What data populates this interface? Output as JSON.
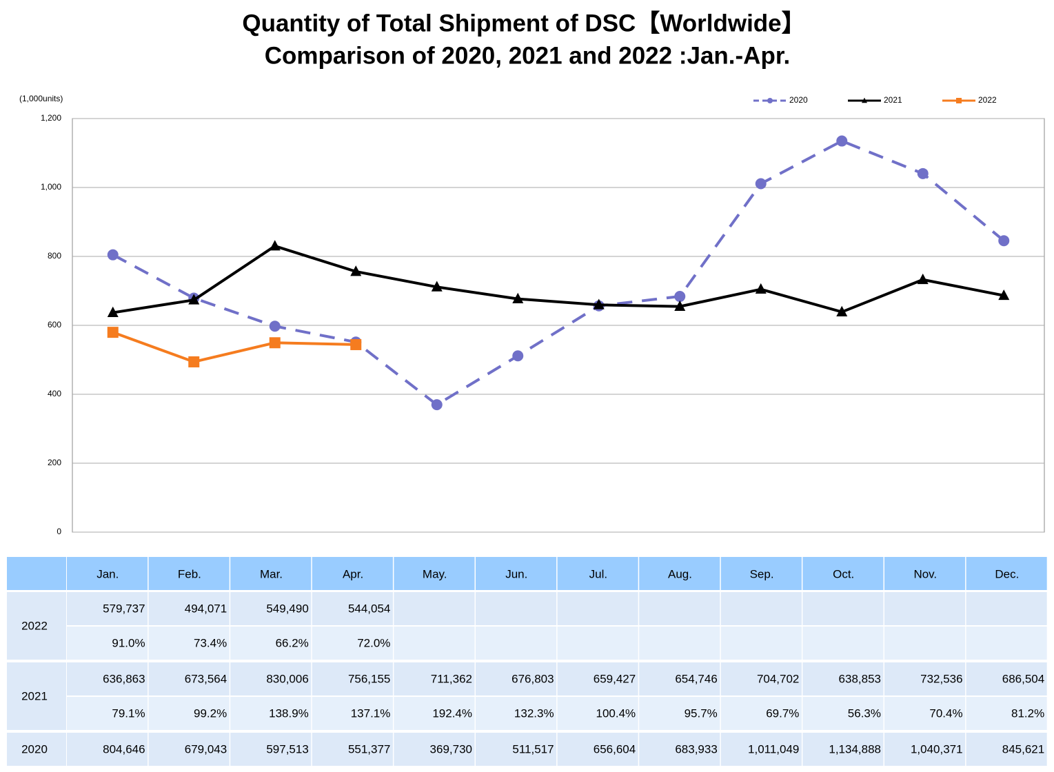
{
  "chart_data": {
    "type": "line",
    "title": "Quantity of Total Shipment of DSC【Worldwide】",
    "subtitle": "Comparison of 2020, 2021 and 2022 :Jan.-Apr.",
    "y_label": "(1,000units)",
    "categories": [
      "Jan.",
      "Feb.",
      "Mar.",
      "Apr.",
      "May.",
      "Jun.",
      "Jul.",
      "Aug.",
      "Sep.",
      "Oct.",
      "Nov.",
      "Dec."
    ],
    "series": [
      {
        "name": "2020",
        "color": "#7070c8",
        "dashed": true,
        "marker": "circle",
        "values": [
          804.646,
          679.043,
          597.513,
          551.377,
          369.73,
          511.517,
          656.604,
          683.933,
          1011.049,
          1134.888,
          1040.371,
          845.621
        ]
      },
      {
        "name": "2021",
        "color": "#000000",
        "marker": "triangle",
        "values": [
          636.863,
          673.564,
          830.006,
          756.155,
          711.362,
          676.803,
          659.427,
          654.746,
          704.702,
          638.853,
          732.536,
          686.504
        ]
      },
      {
        "name": "2022",
        "color": "#f57c1f",
        "marker": "square",
        "values": [
          579.737,
          494.071,
          549.49,
          544.054,
          null,
          null,
          null,
          null,
          null,
          null,
          null,
          null
        ]
      }
    ],
    "ylim": [
      0,
      1200
    ],
    "yticks": [
      0,
      200,
      400,
      600,
      800,
      {
        "value": 1000,
        "label": "1,000"
      },
      {
        "value": 1200,
        "label": "1,200"
      }
    ],
    "grid": true,
    "legend": "top-right"
  },
  "table": [
    {
      "rows": [
        [
          "579,737",
          "494,071",
          "549,490",
          "544,054"
        ],
        [
          "91.0%",
          "73.4%",
          "66.2%",
          "72.0%"
        ]
      ]
    },
    {
      "rows": [
        [
          "636,863",
          "673,564",
          "830,006",
          "756,155",
          "711,362",
          "676,803",
          "659,427",
          "654,746",
          "704,702",
          "638,853",
          "732,536",
          "686,504"
        ],
        [
          "79.1%",
          "99.2%",
          "138.9%",
          "137.1%",
          "192.4%",
          "132.3%",
          "100.4%",
          "95.7%",
          "69.7%",
          "56.3%",
          "70.4%",
          "81.2%"
        ]
      ]
    },
    {
      "rows": [
        [
          "804,646",
          "679,043",
          "597,513",
          "551,377",
          "369,730",
          "511,517",
          "656,604",
          "683,933",
          "1,011,049",
          "1,134,888",
          "1,040,371",
          "845,621"
        ]
      ]
    }
  ]
}
